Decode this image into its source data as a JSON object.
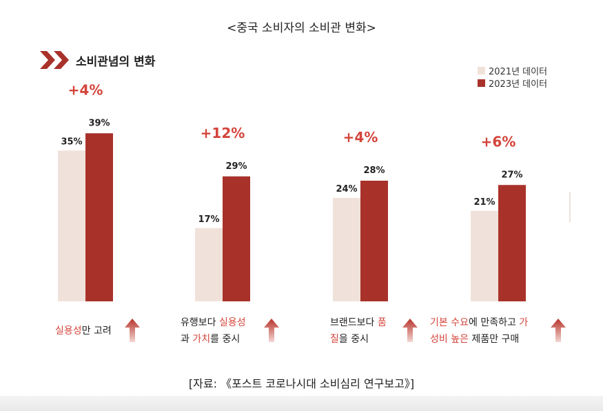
{
  "page_title": "<중국 소비자의 소비관 변화>",
  "section_title": "소비관념의 변화",
  "legend": [
    {
      "label": "2021년  데이터",
      "color": "#f0e2da"
    },
    {
      "label": "2023년  데이터",
      "color": "#a8322a"
    }
  ],
  "colors": {
    "bar_2021": "#f0e2da",
    "bar_2023": "#a8322a",
    "change": "#d4443b",
    "accent": "#a8322a",
    "highlight": "#d4443b"
  },
  "chart_data": {
    "type": "bar",
    "title": "소비관념의 변화",
    "categories": [
      "실용성만 고려",
      "유행보다 실용성과 가치를 중시",
      "브랜드보다 품질을 중시",
      "기본 수요에 만족하고 가성비 높은 제품만 구매"
    ],
    "series": [
      {
        "name": "2021년 데이터",
        "values": [
          35,
          17,
          24,
          21
        ],
        "labels": [
          "35%",
          "17%",
          "24%",
          "21%"
        ]
      },
      {
        "name": "2023년 데이터",
        "values": [
          39,
          29,
          28,
          27
        ],
        "labels": [
          "39%",
          "29%",
          "28%",
          "27%"
        ]
      }
    ],
    "changes": [
      "+4%",
      "+12%",
      "+4%",
      "+6%"
    ],
    "ylim": [
      0,
      45
    ],
    "xlabel": "",
    "ylabel": "",
    "legend_position": "top-right"
  },
  "captions": [
    [
      [
        {
          "t": "실용성",
          "h": true
        },
        {
          "t": "만 고려",
          "h": false
        }
      ]
    ],
    [
      [
        {
          "t": "유행보다 ",
          "h": false
        },
        {
          "t": "실용성",
          "h": true
        }
      ],
      [
        {
          "t": "과 ",
          "h": false
        },
        {
          "t": "가치",
          "h": true
        },
        {
          "t": "를 중시",
          "h": false
        }
      ]
    ],
    [
      [
        {
          "t": "브랜드보다 ",
          "h": false
        },
        {
          "t": "품",
          "h": true
        }
      ],
      [
        {
          "t": "질",
          "h": true
        },
        {
          "t": "을 중시",
          "h": false
        }
      ]
    ],
    [
      [
        {
          "t": "기본 수요",
          "h": true
        },
        {
          "t": "에 만족하고 ",
          "h": false
        },
        {
          "t": "가",
          "h": true
        }
      ],
      [
        {
          "t": "성비 높은",
          "h": true
        },
        {
          "t": " 제품만 구매",
          "h": false
        }
      ]
    ]
  ],
  "source": "[자료: 《포스트 코로나시대 소비심리 연구보고》]"
}
